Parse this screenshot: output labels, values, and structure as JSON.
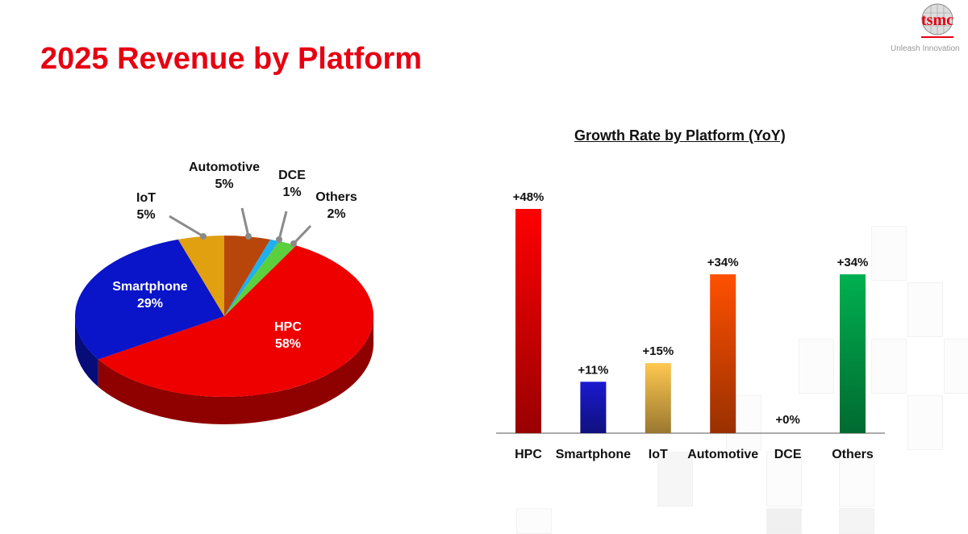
{
  "page_title": "2025 Revenue by Platform",
  "logo": {
    "text": "tsmc",
    "tagline": "Unleash Innovation"
  },
  "chart_data": [
    {
      "type": "pie",
      "title": "",
      "slices": [
        {
          "label": "Automotive",
          "value": 5,
          "display": "5%",
          "color": "#b8460a"
        },
        {
          "label": "DCE",
          "value": 1,
          "display": "1%",
          "color": "#1fb0f0"
        },
        {
          "label": "Others",
          "value": 2,
          "display": "2%",
          "color": "#5ccf3c"
        },
        {
          "label": "HPC",
          "value": 58,
          "display": "58%",
          "color": "#ee0000"
        },
        {
          "label": "Smartphone",
          "value": 29,
          "display": "29%",
          "color": "#0a14c8"
        },
        {
          "label": "IoT",
          "value": 5,
          "display": "5%",
          "color": "#e0a010"
        }
      ]
    },
    {
      "type": "bar",
      "title": "Growth Rate by Platform (YoY)",
      "categories": [
        "HPC",
        "Smartphone",
        "IoT",
        "Automotive",
        "DCE",
        "Others"
      ],
      "values": [
        48,
        11,
        15,
        34,
        0,
        34
      ],
      "labels": [
        "+48%",
        "+11%",
        "+15%",
        "+34%",
        "+0%",
        "+34%"
      ],
      "colors": [
        "#ff0000",
        "#1a1ad0",
        "#ffc850",
        "#ff5000",
        "#999999",
        "#00b050"
      ],
      "ylabel": "",
      "xlabel": "",
      "ylim": [
        0,
        50
      ]
    }
  ]
}
